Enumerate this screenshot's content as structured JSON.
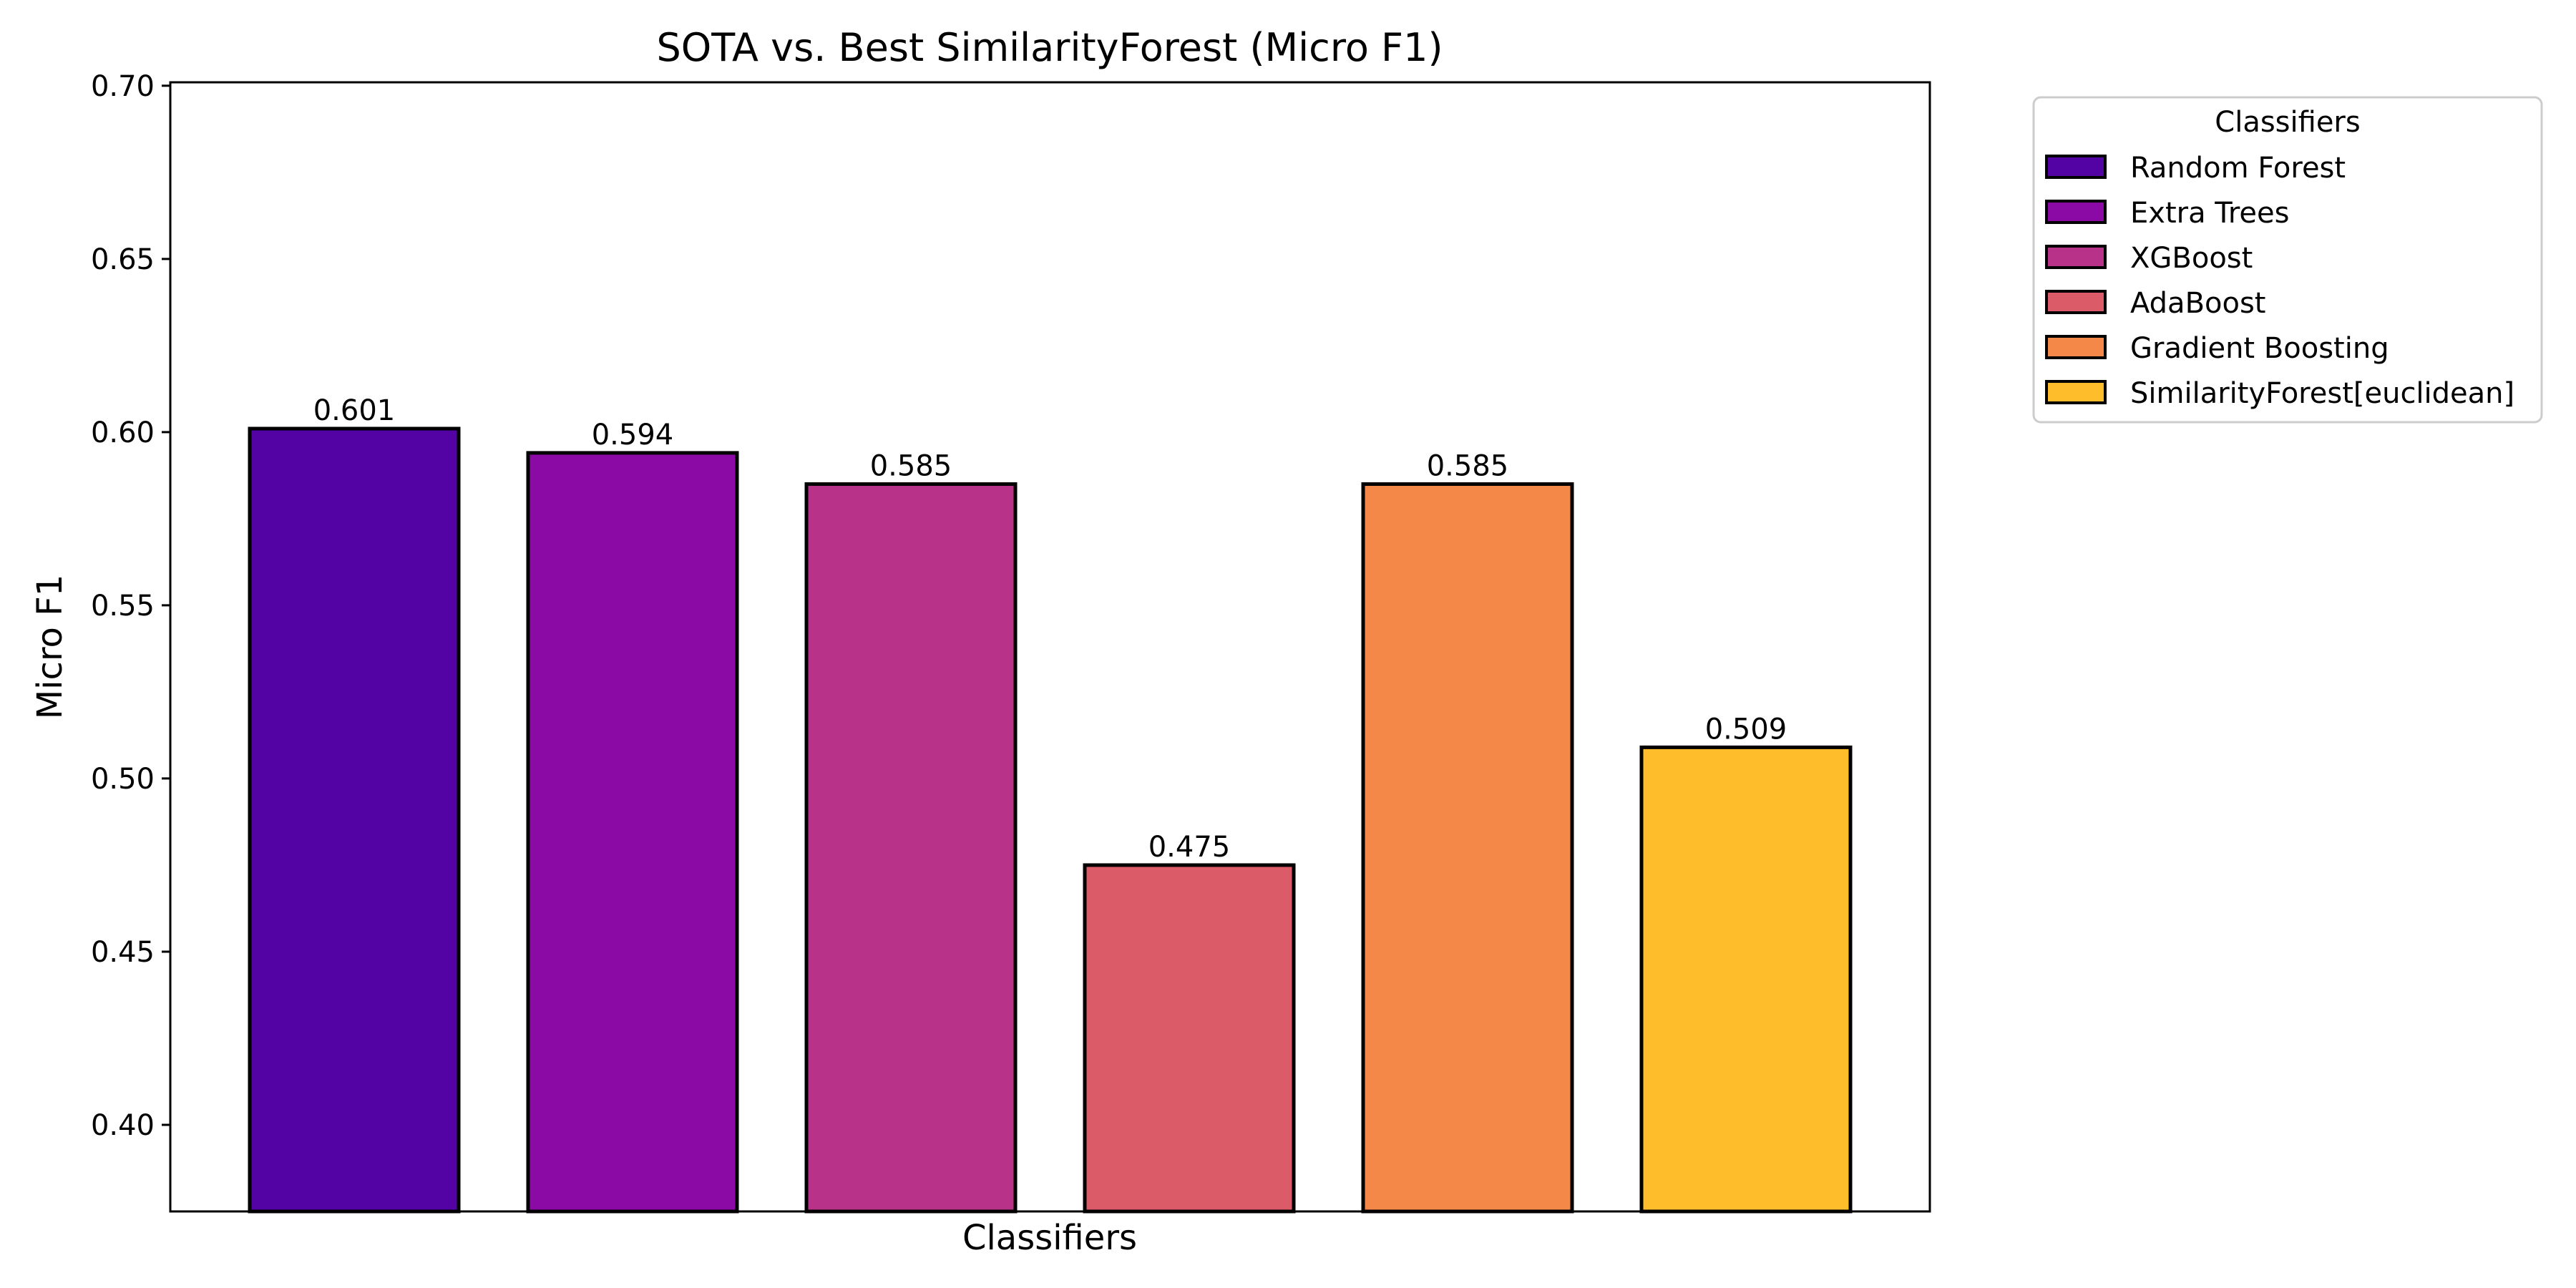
{
  "chart_data": {
    "type": "bar",
    "title": "SOTA vs. Best SimilarityForest (Micro F1)",
    "xlabel": "Classifiers",
    "ylabel": "Micro F1",
    "ylim": [
      0.375,
      0.701
    ],
    "yticks": [
      "0.40",
      "0.45",
      "0.50",
      "0.55",
      "0.60",
      "0.65",
      "0.70"
    ],
    "categories": [
      "Random Forest",
      "Extra Trees",
      "XGBoost",
      "AdaBoost",
      "Gradient Boosting",
      "SimilarityForest[euclidean]"
    ],
    "values": [
      0.601,
      0.594,
      0.585,
      0.475,
      0.585,
      0.509
    ],
    "value_labels": [
      "0.601",
      "0.594",
      "0.585",
      "0.475",
      "0.585",
      "0.509"
    ],
    "colors": [
      "#5302a3",
      "#8b0aa5",
      "#b83289",
      "#db5c68",
      "#f48849",
      "#febd2a"
    ],
    "grid": false,
    "legend": {
      "title": "Classifiers",
      "placement": "outside-right-top"
    }
  }
}
